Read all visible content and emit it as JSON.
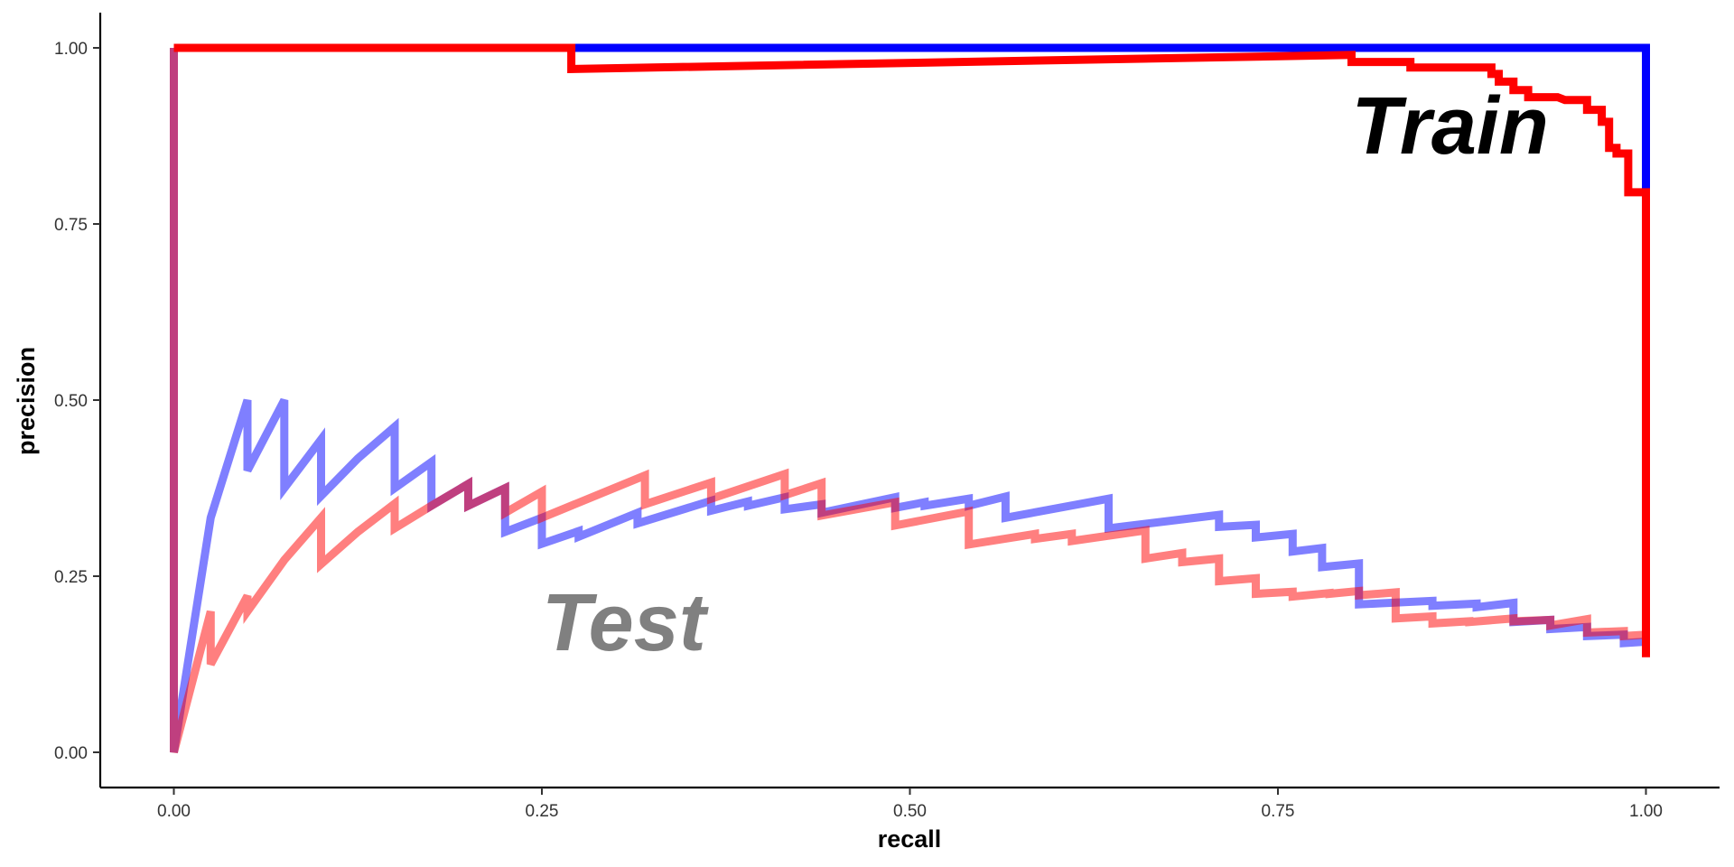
{
  "chart_data": {
    "type": "line",
    "title": "",
    "xlabel": "recall",
    "ylabel": "precision",
    "xlim": [
      -0.05,
      1.05
    ],
    "ylim": [
      -0.05,
      1.05
    ],
    "x_ticks": [
      0,
      0.25,
      0.5,
      0.75,
      1
    ],
    "x_tick_labels": [
      "0.00",
      "0.25",
      "0.50",
      "0.75",
      "1.00"
    ],
    "y_ticks": [
      0,
      0.25,
      0.5,
      0.75,
      1
    ],
    "y_tick_labels": [
      "0.00",
      "0.25",
      "0.50",
      "0.75",
      "1.00"
    ],
    "grid": false,
    "legend": "none",
    "annotations": [
      {
        "text": "Train",
        "x": 0.8,
        "y": 0.85,
        "color": "#000000"
      },
      {
        "text": "Test",
        "x": 0.25,
        "y": 0.145,
        "color": "#808080"
      }
    ],
    "series": [
      {
        "color": "#0000ff",
        "opacity": 0.5,
        "points": [
          [
            0,
            1
          ],
          [
            0,
            0
          ],
          [
            0.025,
            0.333
          ],
          [
            0.05,
            0.5
          ],
          [
            0.05,
            0.4
          ],
          [
            0.075,
            0.5
          ],
          [
            0.075,
            0.375
          ],
          [
            0.1,
            0.444
          ],
          [
            0.1,
            0.364
          ],
          [
            0.125,
            0.417
          ],
          [
            0.15,
            0.462
          ],
          [
            0.15,
            0.375
          ],
          [
            0.175,
            0.412
          ],
          [
            0.175,
            0.35
          ],
          [
            0.2,
            0.381
          ],
          [
            0.2,
            0.35
          ],
          [
            0.225,
            0.375
          ],
          [
            0.225,
            0.313
          ],
          [
            0.25,
            0.333
          ],
          [
            0.25,
            0.296
          ],
          [
            0.275,
            0.314
          ],
          [
            0.275,
            0.306
          ],
          [
            0.315,
            0.34
          ],
          [
            0.315,
            0.325
          ],
          [
            0.365,
            0.357
          ],
          [
            0.365,
            0.343
          ],
          [
            0.39,
            0.356
          ],
          [
            0.39,
            0.35
          ],
          [
            0.415,
            0.362
          ],
          [
            0.415,
            0.345
          ],
          [
            0.44,
            0.352
          ],
          [
            0.44,
            0.34
          ],
          [
            0.49,
            0.362
          ],
          [
            0.49,
            0.347
          ],
          [
            0.51,
            0.355
          ],
          [
            0.51,
            0.35
          ],
          [
            0.54,
            0.36
          ],
          [
            0.54,
            0.35
          ],
          [
            0.565,
            0.363
          ],
          [
            0.565,
            0.333
          ],
          [
            0.635,
            0.36
          ],
          [
            0.635,
            0.318
          ],
          [
            0.71,
            0.337
          ],
          [
            0.71,
            0.32
          ],
          [
            0.735,
            0.323
          ],
          [
            0.735,
            0.305
          ],
          [
            0.76,
            0.31
          ],
          [
            0.76,
            0.285
          ],
          [
            0.78,
            0.29
          ],
          [
            0.78,
            0.263
          ],
          [
            0.805,
            0.268
          ],
          [
            0.805,
            0.21
          ],
          [
            0.855,
            0.215
          ],
          [
            0.855,
            0.208
          ],
          [
            0.885,
            0.211
          ],
          [
            0.885,
            0.206
          ],
          [
            0.91,
            0.212
          ],
          [
            0.91,
            0.185
          ],
          [
            0.935,
            0.188
          ],
          [
            0.935,
            0.175
          ],
          [
            0.96,
            0.178
          ],
          [
            0.96,
            0.165
          ],
          [
            0.985,
            0.167
          ],
          [
            0.985,
            0.155
          ],
          [
            1,
            0.157
          ]
        ]
      },
      {
        "color": "#ff0000",
        "opacity": 0.5,
        "points": [
          [
            0,
            1
          ],
          [
            0,
            0
          ],
          [
            0.025,
            0.2
          ],
          [
            0.025,
            0.125
          ],
          [
            0.05,
            0.222
          ],
          [
            0.05,
            0.2
          ],
          [
            0.075,
            0.273
          ],
          [
            0.1,
            0.333
          ],
          [
            0.1,
            0.267
          ],
          [
            0.125,
            0.313
          ],
          [
            0.15,
            0.353
          ],
          [
            0.15,
            0.318
          ],
          [
            0.175,
            0.35
          ],
          [
            0.2,
            0.381
          ],
          [
            0.2,
            0.35
          ],
          [
            0.225,
            0.375
          ],
          [
            0.225,
            0.34
          ],
          [
            0.25,
            0.37
          ],
          [
            0.25,
            0.333
          ],
          [
            0.32,
            0.393
          ],
          [
            0.32,
            0.352
          ],
          [
            0.365,
            0.383
          ],
          [
            0.365,
            0.36
          ],
          [
            0.415,
            0.395
          ],
          [
            0.415,
            0.365
          ],
          [
            0.44,
            0.382
          ],
          [
            0.44,
            0.336
          ],
          [
            0.49,
            0.355
          ],
          [
            0.49,
            0.322
          ],
          [
            0.54,
            0.342
          ],
          [
            0.54,
            0.295
          ],
          [
            0.585,
            0.31
          ],
          [
            0.585,
            0.303
          ],
          [
            0.61,
            0.31
          ],
          [
            0.61,
            0.3
          ],
          [
            0.66,
            0.315
          ],
          [
            0.66,
            0.275
          ],
          [
            0.685,
            0.283
          ],
          [
            0.685,
            0.27
          ],
          [
            0.71,
            0.275
          ],
          [
            0.71,
            0.243
          ],
          [
            0.735,
            0.247
          ],
          [
            0.735,
            0.225
          ],
          [
            0.76,
            0.228
          ],
          [
            0.76,
            0.221
          ],
          [
            0.785,
            0.226
          ],
          [
            0.785,
            0.225
          ],
          [
            0.805,
            0.229
          ],
          [
            0.805,
            0.223
          ],
          [
            0.83,
            0.227
          ],
          [
            0.83,
            0.19
          ],
          [
            0.855,
            0.193
          ],
          [
            0.855,
            0.183
          ],
          [
            0.88,
            0.186
          ],
          [
            0.88,
            0.185
          ],
          [
            0.91,
            0.19
          ],
          [
            0.91,
            0.186
          ],
          [
            0.935,
            0.188
          ],
          [
            0.935,
            0.18
          ],
          [
            0.96,
            0.189
          ],
          [
            0.96,
            0.17
          ],
          [
            0.985,
            0.172
          ],
          [
            0.985,
            0.165
          ],
          [
            1,
            0.167
          ]
        ]
      },
      {
        "color": "#0000ff",
        "opacity": 1,
        "points": [
          [
            0,
            1
          ],
          [
            1,
            1
          ],
          [
            1,
            0.8
          ]
        ]
      },
      {
        "color": "#ff0000",
        "opacity": 1,
        "points": [
          [
            0,
            1
          ],
          [
            0.27,
            1
          ],
          [
            0.27,
            0.97
          ],
          [
            0.8,
            0.99
          ],
          [
            0.8,
            0.98
          ],
          [
            0.84,
            0.98
          ],
          [
            0.84,
            0.972
          ],
          [
            0.895,
            0.972
          ],
          [
            0.895,
            0.963
          ],
          [
            0.9,
            0.963
          ],
          [
            0.9,
            0.952
          ],
          [
            0.91,
            0.952
          ],
          [
            0.91,
            0.94
          ],
          [
            0.92,
            0.94
          ],
          [
            0.92,
            0.93
          ],
          [
            0.94,
            0.93
          ],
          [
            0.945,
            0.926
          ],
          [
            0.96,
            0.926
          ],
          [
            0.96,
            0.912
          ],
          [
            0.97,
            0.912
          ],
          [
            0.97,
            0.895
          ],
          [
            0.975,
            0.895
          ],
          [
            0.975,
            0.858
          ],
          [
            0.98,
            0.858
          ],
          [
            0.98,
            0.85
          ],
          [
            0.988,
            0.85
          ],
          [
            0.988,
            0.795
          ],
          [
            1,
            0.795
          ],
          [
            1,
            0.135
          ]
        ]
      }
    ]
  }
}
